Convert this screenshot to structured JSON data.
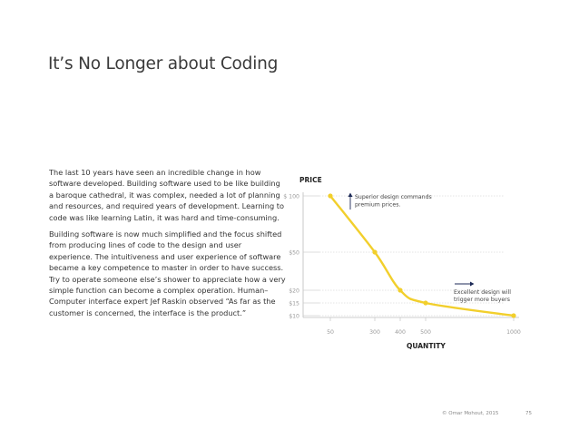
{
  "slide": {
    "title": "It’s No Longer about Coding",
    "paragraphs": [
      "The last 10 years have seen an incredible change in how software developed. Building software used to be like building a baroque cathedral, it was complex, needed a lot of planning and resources, and required years of development. Learning to code was like learning Latin, it was hard and time-consuming.",
      "Building software is now much simplified and the focus shifted from producing lines of code to the design and user experience. The intuitiveness and user experience of software became a key competence to master in order to have success. Try to operate someone else’s shower to appreciate how a very simple function can become a complex operation. Human–Computer interface expert Jef Raskin observed “As far as the customer is concerned, the interface is the product.”"
    ],
    "footer": {
      "credit": "© Omar Mohout, 2015",
      "page_number": "75"
    }
  },
  "colors": {
    "curve": "#f2cf2c",
    "arrow": "#1d2a57",
    "axis": "#bdbdbd",
    "gridline": "#c8c8c8",
    "tick_label": "#9a9a9a"
  },
  "chart_data": {
    "type": "line",
    "ylabel": "PRICE",
    "xlabel": "QUANTITY",
    "y_ticks": [
      {
        "value": 10,
        "label": "$10"
      },
      {
        "value": 15,
        "label": "$15"
      },
      {
        "value": 20,
        "label": "$20"
      },
      {
        "value": 50,
        "label": "$50"
      },
      {
        "value": 100,
        "label": "$ 100"
      }
    ],
    "x_ticks": [
      {
        "value": 50,
        "label": "50"
      },
      {
        "value": 300,
        "label": "300"
      },
      {
        "value": 400,
        "label": "400"
      },
      {
        "value": 500,
        "label": "500"
      },
      {
        "value": 1000,
        "label": "1000"
      }
    ],
    "points": [
      {
        "x": 50,
        "y": 100
      },
      {
        "x": 300,
        "y": 50
      },
      {
        "x": 400,
        "y": 20
      },
      {
        "x": 500,
        "y": 15
      },
      {
        "x": 1000,
        "y": 10
      }
    ],
    "annotations": [
      {
        "text_lines": [
          "Superior design commands",
          "premium prices."
        ],
        "arrow": "up"
      },
      {
        "text_lines": [
          "Excellent design will",
          "trigger more buyers"
        ],
        "arrow": "right"
      }
    ],
    "grid": "horizontal dashed at labeled prices"
  }
}
